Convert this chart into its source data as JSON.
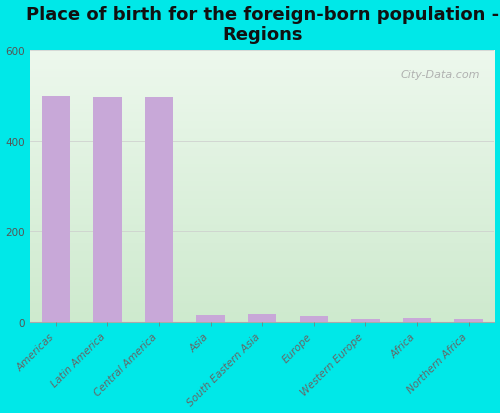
{
  "title": "Place of birth for the foreign-born population -\nRegions",
  "categories": [
    "Americas",
    "Latin America",
    "Central America",
    "Asia",
    "South Eastern Asia",
    "Europe",
    "Western Europe",
    "Africa",
    "Northern Africa"
  ],
  "values": [
    500,
    497,
    497,
    15,
    17,
    12,
    7,
    8,
    6
  ],
  "bar_color": "#c8a8d8",
  "background_color": "#00e8e8",
  "ylim": [
    0,
    600
  ],
  "yticks": [
    0,
    200,
    400,
    600
  ],
  "title_fontsize": 13,
  "tick_fontsize": 7.5,
  "watermark": "City-Data.com",
  "grid_color": "#cccccc",
  "plot_bg_tl": "#f5fff5",
  "plot_bg_tr": "#e8f8f0",
  "plot_bg_bl": "#d8f0d8",
  "plot_bg_br": "#c8e8c8"
}
